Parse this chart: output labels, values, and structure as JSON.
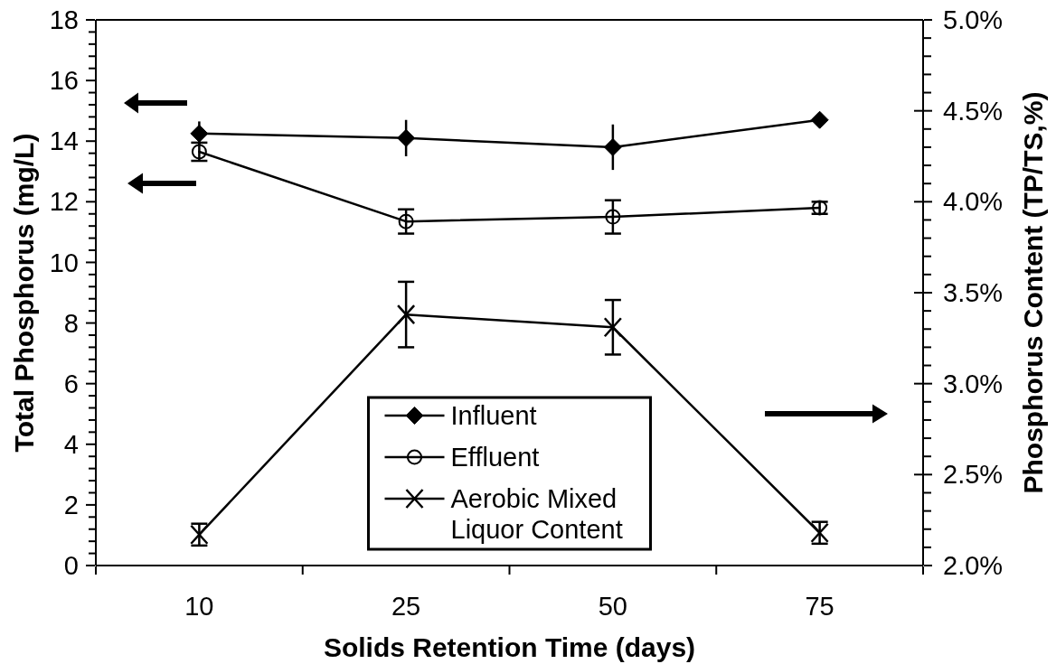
{
  "chart_data": {
    "type": "line",
    "xlabel": "Solids Retention Time (days)",
    "ylabel": "Total Phosphorus (mg/L)",
    "y2label": "Phosphorus Content (TP/TS,%)",
    "categories": [
      "10",
      "25",
      "50",
      "75"
    ],
    "series": [
      {
        "name": "Influent",
        "color": "#000000",
        "marker": "diamond",
        "values": [
          14.25,
          14.1,
          13.8,
          14.7
        ],
        "errors": [
          0.4,
          0.6,
          0.75,
          null
        ]
      },
      {
        "name": "Effluent",
        "color": "#000000",
        "marker": "circle",
        "values": [
          13.65,
          11.35,
          11.5,
          11.8
        ],
        "errors": [
          0.3,
          0.4,
          0.55,
          0.2
        ]
      },
      {
        "name": "Aerobic Mixed Liquor Content",
        "color": "#000000",
        "marker": "cross",
        "axis": "y2",
        "values": [
          2.17,
          3.38,
          3.31,
          2.18
        ],
        "errors": [
          0.06,
          0.18,
          0.15,
          0.06
        ]
      }
    ],
    "ylim": [
      0,
      18
    ],
    "yticks": [
      0,
      {
        "value": 0.4,
        "label": null
      },
      {
        "value": 0.8,
        "label": null
      },
      {
        "value": 1.2,
        "label": null
      },
      {
        "value": 1.6,
        "label": null
      },
      2,
      {
        "value": 2.4,
        "label": null
      },
      {
        "value": 2.8,
        "label": null
      },
      {
        "value": 3.2,
        "label": null
      },
      {
        "value": 3.6,
        "label": null
      },
      4,
      {
        "value": 4.4,
        "label": null
      },
      {
        "value": 4.8,
        "label": null
      },
      {
        "value": 5.2,
        "label": null
      },
      {
        "value": 5.6,
        "label": null
      },
      6,
      {
        "value": 6.4,
        "label": null
      },
      {
        "value": 6.8,
        "label": null
      },
      {
        "value": 7.2,
        "label": null
      },
      {
        "value": 7.6,
        "label": null
      },
      8,
      {
        "value": 8.4,
        "label": null
      },
      {
        "value": 8.8,
        "label": null
      },
      {
        "value": 9.2,
        "label": null
      },
      {
        "value": 9.6,
        "label": null
      },
      10,
      {
        "value": 10.4,
        "label": null
      },
      {
        "value": 10.8,
        "label": null
      },
      {
        "value": 11.2,
        "label": null
      },
      {
        "value": 11.6,
        "label": null
      },
      12,
      {
        "value": 12.4,
        "label": null
      },
      {
        "value": 12.8,
        "label": null
      },
      {
        "value": 13.2,
        "label": null
      },
      {
        "value": 13.6,
        "label": null
      },
      14,
      {
        "value": 14.4,
        "label": null
      },
      {
        "value": 14.8,
        "label": null
      },
      {
        "value": 15.2,
        "label": null
      },
      {
        "value": 15.6,
        "label": null
      },
      16,
      {
        "value": 16.4,
        "label": null
      },
      {
        "value": 16.8,
        "label": null
      },
      {
        "value": 17.2,
        "label": null
      },
      {
        "value": 17.6,
        "label": null
      },
      18
    ],
    "y2lim": [
      2,
      5
    ],
    "y2ticks": [
      {
        "value": 2,
        "label": "2.0%"
      },
      {
        "value": 2.1,
        "label": null
      },
      {
        "value": 2.2,
        "label": null
      },
      {
        "value": 2.3,
        "label": null
      },
      {
        "value": 2.4,
        "label": null
      },
      {
        "value": 2.5,
        "label": "2.5%"
      },
      {
        "value": 2.6,
        "label": null
      },
      {
        "value": 2.7,
        "label": null
      },
      {
        "value": 2.8,
        "label": null
      },
      {
        "value": 2.9,
        "label": null
      },
      {
        "value": 3,
        "label": "3.0%"
      },
      {
        "value": 3.1,
        "label": null
      },
      {
        "value": 3.2,
        "label": null
      },
      {
        "value": 3.3,
        "label": null
      },
      {
        "value": 3.4,
        "label": null
      },
      {
        "value": 3.5,
        "label": "3.5%"
      },
      {
        "value": 3.6,
        "label": null
      },
      {
        "value": 3.7,
        "label": null
      },
      {
        "value": 3.8,
        "label": null
      },
      {
        "value": 3.9,
        "label": null
      },
      {
        "value": 4,
        "label": "4.0%"
      },
      {
        "value": 4.1,
        "label": null
      },
      {
        "value": 4.2,
        "label": null
      },
      {
        "value": 4.3,
        "label": null
      },
      {
        "value": 4.4,
        "label": null
      },
      {
        "value": 4.5,
        "label": "4.5%"
      },
      {
        "value": 4.6,
        "label": null
      },
      {
        "value": 4.7,
        "label": null
      },
      {
        "value": 4.8,
        "label": null
      },
      {
        "value": 4.9,
        "label": null
      },
      {
        "value": 5,
        "label": "5.0%"
      }
    ],
    "legend": "bottom",
    "line_style": "solid"
  }
}
